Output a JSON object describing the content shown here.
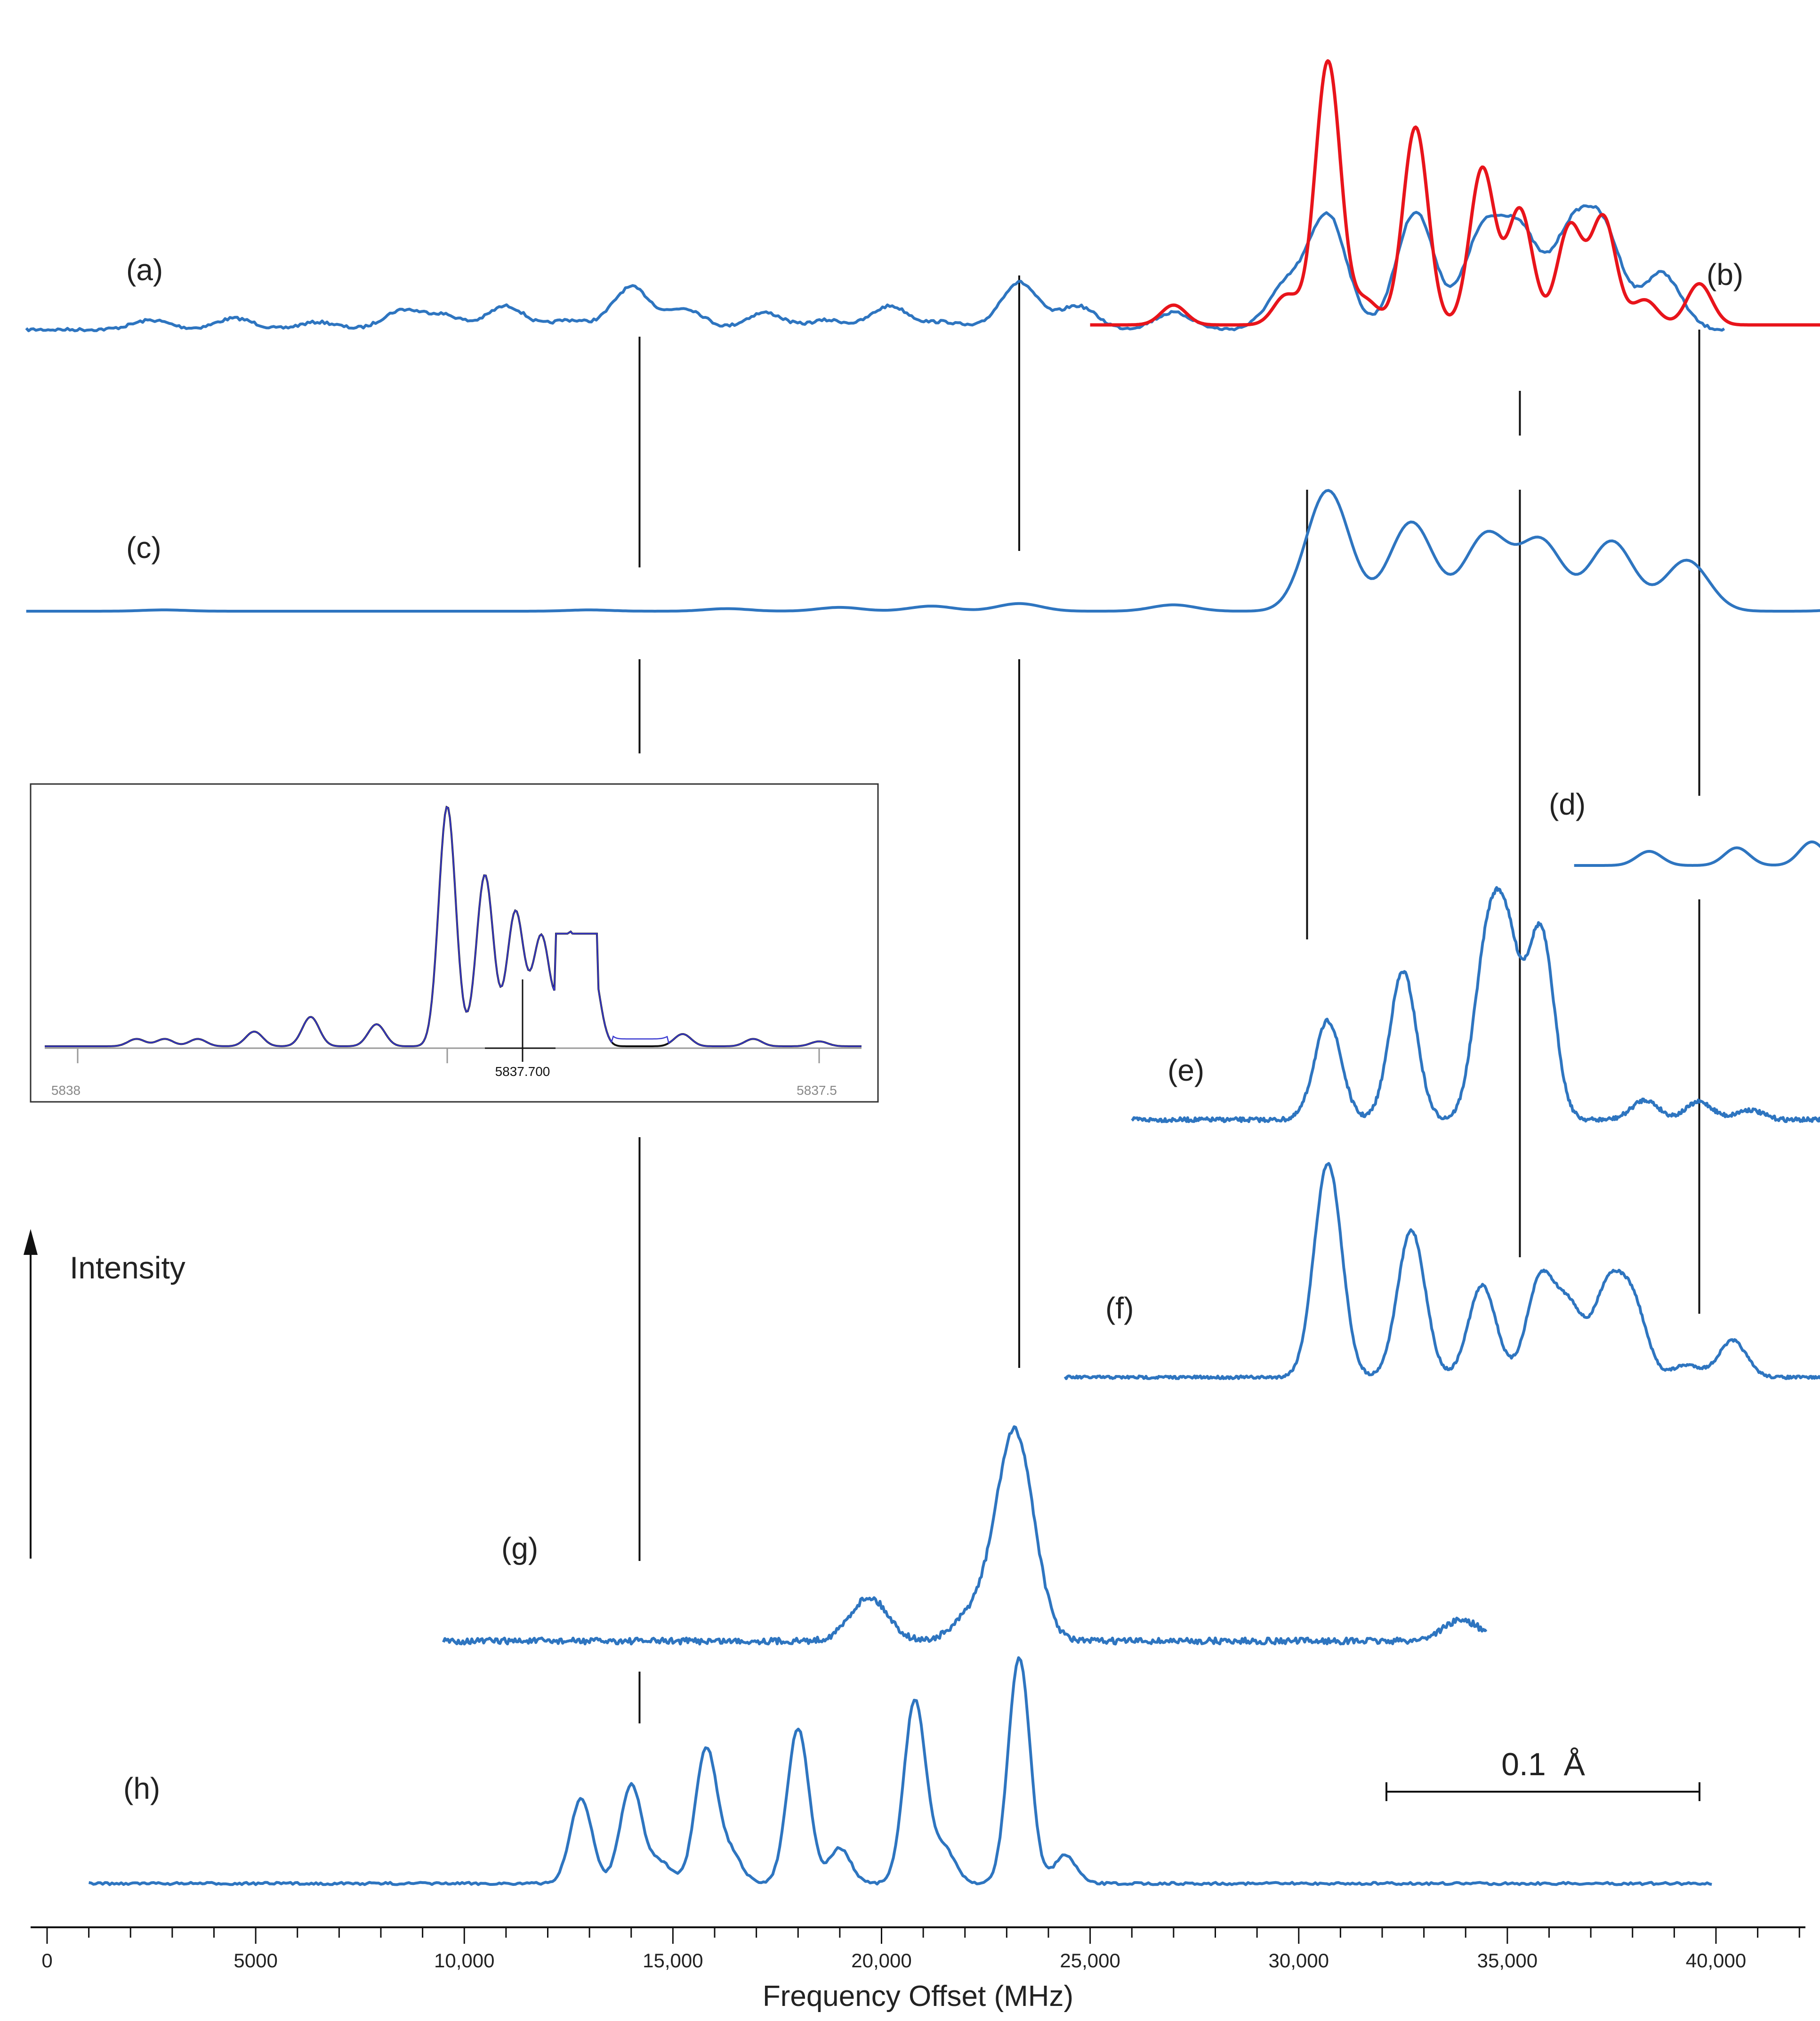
{
  "chart_data": {
    "type": "line",
    "x_axis": {
      "label": "Frequency Offset (MHz)",
      "range": [
        -500,
        44500
      ],
      "ticks": [
        0,
        5000,
        10000,
        15000,
        20000,
        25000,
        30000,
        35000,
        40000
      ],
      "tick_labels": [
        "0",
        "5000",
        "10,000",
        "15,000",
        "20,000",
        "25,000",
        "30,000",
        "35,000",
        "40,000"
      ],
      "minor_tick_step": 1000
    },
    "y_axis": {
      "label": "Intensity",
      "arrow": "up"
    },
    "scale_bar": {
      "label": "0.1  Å"
    },
    "reference_lines_mhz": [
      14200,
      23300,
      30200,
      35300,
      39600
    ],
    "series": [
      {
        "label": "(a)",
        "color": "#2e75c0",
        "x_range": [
          -500,
          40200
        ],
        "peaks": [
          {
            "x": 2500,
            "h": 0.1
          },
          {
            "x": 4500,
            "h": 0.12
          },
          {
            "x": 6500,
            "h": 0.08
          },
          {
            "x": 8500,
            "h": 0.2
          },
          {
            "x": 9500,
            "h": 0.15
          },
          {
            "x": 11000,
            "h": 0.25
          },
          {
            "x": 12500,
            "h": 0.1
          },
          {
            "x": 14000,
            "h": 0.45
          },
          {
            "x": 15300,
            "h": 0.22
          },
          {
            "x": 17200,
            "h": 0.18
          },
          {
            "x": 18700,
            "h": 0.1
          },
          {
            "x": 20200,
            "h": 0.25
          },
          {
            "x": 21500,
            "h": 0.08
          },
          {
            "x": 23300,
            "h": 0.5
          },
          {
            "x": 24700,
            "h": 0.25
          },
          {
            "x": 27000,
            "h": 0.18
          },
          {
            "x": 29700,
            "h": 0.45
          },
          {
            "x": 30700,
            "h": 1.2
          },
          {
            "x": 32800,
            "h": 1.25
          },
          {
            "x": 34400,
            "h": 1.0
          },
          {
            "x": 35300,
            "h": 1.0
          },
          {
            "x": 36500,
            "h": 0.95
          },
          {
            "x": 37300,
            "h": 1.0
          },
          {
            "x": 38700,
            "h": 0.6
          }
        ]
      },
      {
        "label": "(b)",
        "color": "#e8141b",
        "x_range": [
          25000,
          43900
        ],
        "peaks": [
          {
            "x": 27000,
            "h": 0.12
          },
          {
            "x": 29700,
            "h": 0.18
          },
          {
            "x": 30700,
            "h": 1.6
          },
          {
            "x": 31600,
            "h": 0.15
          },
          {
            "x": 32800,
            "h": 1.2
          },
          {
            "x": 34400,
            "h": 0.95
          },
          {
            "x": 35300,
            "h": 0.7
          },
          {
            "x": 36500,
            "h": 0.6
          },
          {
            "x": 37300,
            "h": 0.65
          },
          {
            "x": 38300,
            "h": 0.15
          },
          {
            "x": 39600,
            "h": 0.25
          }
        ]
      },
      {
        "label": "(c)",
        "color": "#2e75c0",
        "x_range": [
          -500,
          44000
        ],
        "peaks": [
          {
            "x": 2800,
            "h": 0.01
          },
          {
            "x": 13000,
            "h": 0.01
          },
          {
            "x": 16300,
            "h": 0.02
          },
          {
            "x": 19000,
            "h": 0.03
          },
          {
            "x": 21200,
            "h": 0.04
          },
          {
            "x": 23300,
            "h": 0.06
          },
          {
            "x": 27000,
            "h": 0.05
          },
          {
            "x": 30700,
            "h": 0.95
          },
          {
            "x": 32700,
            "h": 0.7
          },
          {
            "x": 34500,
            "h": 0.6
          },
          {
            "x": 35800,
            "h": 0.55
          },
          {
            "x": 37500,
            "h": 0.55
          },
          {
            "x": 39300,
            "h": 0.4
          },
          {
            "x": 43500,
            "h": 0.03
          }
        ]
      },
      {
        "label": "(d)",
        "color": "#2e75c0",
        "x_range": [
          36600,
          44300
        ],
        "peaks": [
          {
            "x": 38400,
            "h": 0.12
          },
          {
            "x": 40500,
            "h": 0.15
          },
          {
            "x": 42300,
            "h": 0.2
          },
          {
            "x": 43600,
            "h": 1.6
          }
        ]
      },
      {
        "label": "(e)",
        "color": "#2e75c0",
        "x_range": [
          26000,
          44000
        ],
        "peaks": [
          {
            "x": 30700,
            "h": 1.0
          },
          {
            "x": 32500,
            "h": 1.5
          },
          {
            "x": 34500,
            "h": 1.55
          },
          {
            "x": 35000,
            "h": 1.6
          },
          {
            "x": 35800,
            "h": 1.9
          },
          {
            "x": 38300,
            "h": 0.2
          },
          {
            "x": 39600,
            "h": 0.18
          },
          {
            "x": 40800,
            "h": 0.1
          }
        ]
      },
      {
        "label": "(f)",
        "color": "#2e75c0",
        "x_range": [
          24400,
          43800
        ],
        "peaks": [
          {
            "x": 30700,
            "h": 1.75
          },
          {
            "x": 32700,
            "h": 1.2
          },
          {
            "x": 34400,
            "h": 0.75
          },
          {
            "x": 35800,
            "h": 0.8
          },
          {
            "x": 36500,
            "h": 0.55
          },
          {
            "x": 37400,
            "h": 0.7
          },
          {
            "x": 38000,
            "h": 0.6
          },
          {
            "x": 39300,
            "h": 0.1
          },
          {
            "x": 40400,
            "h": 0.3
          }
        ]
      },
      {
        "label": "(g)",
        "color": "#2e75c0",
        "x_range": [
          9500,
          34500
        ],
        "peaks": [
          {
            "x": 19700,
            "h": 0.25
          },
          {
            "x": 22200,
            "h": 0.15
          },
          {
            "x": 23200,
            "h": 1.2
          },
          {
            "x": 33900,
            "h": 0.12
          }
        ]
      },
      {
        "label": "(h)",
        "color": "#2e75c0",
        "x_range": [
          1000,
          39900
        ],
        "peaks": [
          {
            "x": 12800,
            "h": 0.6
          },
          {
            "x": 14000,
            "h": 0.7
          },
          {
            "x": 14700,
            "h": 0.15
          },
          {
            "x": 15800,
            "h": 0.95
          },
          {
            "x": 16400,
            "h": 0.2
          },
          {
            "x": 18000,
            "h": 1.1
          },
          {
            "x": 19000,
            "h": 0.25
          },
          {
            "x": 20800,
            "h": 1.3
          },
          {
            "x": 21500,
            "h": 0.25
          },
          {
            "x": 23300,
            "h": 1.6
          },
          {
            "x": 24400,
            "h": 0.2
          }
        ]
      }
    ],
    "inset": {
      "x_ticks": [
        "5838",
        "5837.700",
        "5837.5"
      ],
      "series_colors": [
        "#111111",
        "#3a3ad0"
      ]
    }
  }
}
